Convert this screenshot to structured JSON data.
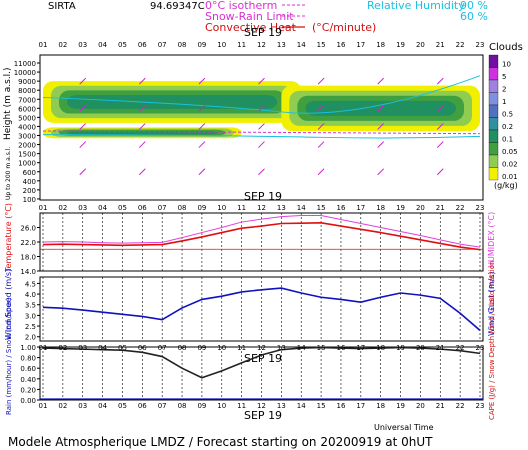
{
  "header": {
    "station": "SIRTA",
    "code": "94.69347C",
    "legend_left": [
      {
        "label": "0°C isotherm",
        "color": "#d930d0"
      },
      {
        "label": "Snow-Rain Limit",
        "color": "#d930d0"
      },
      {
        "label": "Convective Heat",
        "unit": "(°C/minute)",
        "color": "#d01010"
      }
    ],
    "legend_right": [
      {
        "label": "Relative Humidity",
        "value": "90 %",
        "color": "#19c0e0"
      },
      {
        "label": "",
        "value": "60 %",
        "color": "#19c0e0"
      }
    ]
  },
  "footer": "Modele Atmospherique LMDZ / Forecast starting on 20200919 at 0hUT",
  "colors": {
    "accent_magenta": "#d020d0",
    "temp_red": "#e01010",
    "humidex": "#e040e0",
    "wind": "#1010c0",
    "cyan": "#19c0e0"
  },
  "chart_data": [
    {
      "type": "heatmap",
      "title": "SEP 19",
      "ylabel": "Height (m a.s.l.)",
      "ylabel_note": "Up to 200 m a.s.l.",
      "x_ticks": [
        "01",
        "02",
        "03",
        "04",
        "05",
        "06",
        "07",
        "08",
        "09",
        "10",
        "11",
        "12",
        "13",
        "14",
        "15",
        "16",
        "17",
        "18",
        "19",
        "20",
        "21",
        "22",
        "23"
      ],
      "y_ticks": [
        "11000",
        "10000",
        "9000",
        "8000",
        "7000",
        "6000",
        "5000",
        "4000",
        "3000",
        "2000",
        "1500",
        "1000",
        "600",
        "400",
        "200",
        "100"
      ],
      "colorbar": {
        "title": "Clouds",
        "unit": "(g/kg)",
        "labels": [
          "10",
          "5",
          "2",
          "1",
          "0.5",
          "0.2",
          "0.1",
          "0.05",
          "0.02",
          "0.01"
        ],
        "colors": [
          "#7010a0",
          "#d030e0",
          "#a080e0",
          "#8090e0",
          "#5070c0",
          "#3090a0",
          "#209060",
          "#40a040",
          "#90cc50",
          "#f0f000"
        ]
      },
      "cloud_layers": [
        {
          "x_range": [
            1,
            14
          ],
          "base_m": 4400,
          "top_m": 9000,
          "peak": "0.2"
        },
        {
          "x_range": [
            13,
            23
          ],
          "base_m": 3500,
          "top_m": 8500,
          "peak": "0.2"
        },
        {
          "x_range": [
            1,
            11
          ],
          "base_m": 2700,
          "top_m": 3900,
          "peak": "0.1"
        }
      ],
      "rh_labels": [
        "90",
        "60"
      ]
    },
    {
      "type": "line",
      "title": "SEP 19",
      "ylabel": "Temperature (°C)",
      "ylabel_right": "HUMIDEX (°C)",
      "y_ticks": [
        "14.0",
        "18.0",
        "22.0",
        "26.0"
      ],
      "ylim": [
        14,
        30
      ],
      "x": [
        1,
        2,
        3,
        4,
        5,
        6,
        7,
        8,
        9,
        10,
        11,
        12,
        13,
        14,
        15,
        16,
        17,
        18,
        19,
        20,
        21,
        22,
        23
      ],
      "series": [
        {
          "name": "Temperature",
          "values": [
            21.3,
            21.4,
            21.3,
            21.2,
            21.1,
            21.2,
            21.3,
            22.3,
            23.4,
            24.6,
            25.8,
            26.4,
            27.1,
            27.2,
            27.3,
            26.4,
            25.5,
            24.6,
            23.6,
            22.6,
            21.6,
            20.6,
            19.9
          ]
        },
        {
          "name": "HUMIDEX",
          "values": [
            22.0,
            22.1,
            22.0,
            21.8,
            21.7,
            21.8,
            21.9,
            23.2,
            24.6,
            26.0,
            27.5,
            28.3,
            29.0,
            29.3,
            29.3,
            28.2,
            27.1,
            26.0,
            24.9,
            23.8,
            22.6,
            21.4,
            20.6
          ]
        }
      ],
      "reference_line": 20.0
    },
    {
      "type": "line",
      "ylabel": "Wind Speed (m/s)",
      "ylabel_right": "Wind Gust (m/s)",
      "y_ticks": [
        "2.0",
        "2.5",
        "3.0",
        "3.5",
        "4.0",
        "4.5"
      ],
      "ylim": [
        1.8,
        4.8
      ],
      "x": [
        1,
        2,
        3,
        4,
        5,
        6,
        7,
        8,
        9,
        10,
        11,
        12,
        13,
        14,
        15,
        16,
        17,
        18,
        19,
        20,
        21,
        22,
        23
      ],
      "series": [
        {
          "name": "Wind Speed",
          "values": [
            3.38,
            3.34,
            3.25,
            3.15,
            3.05,
            2.95,
            2.8,
            3.35,
            3.75,
            3.9,
            4.1,
            4.2,
            4.28,
            4.05,
            3.85,
            3.75,
            3.62,
            3.85,
            4.05,
            3.95,
            3.8,
            3.1,
            2.3
          ]
        }
      ]
    },
    {
      "type": "line",
      "title": "SEP 19",
      "ylabel": "Rain (mm/hour) / Snow (cm/hour)",
      "ylabel_right": "CAPE (J/g) / Snow Depth (cm) / Cloud Fraction",
      "y_ticks": [
        "0.00",
        "0.20",
        "0.40",
        "0.60",
        "0.80",
        "1.00"
      ],
      "ylim": [
        0,
        1
      ],
      "x_label": "Universal Time",
      "x": [
        1,
        2,
        3,
        4,
        5,
        6,
        7,
        8,
        9,
        10,
        11,
        12,
        13,
        14,
        15,
        16,
        17,
        18,
        19,
        20,
        21,
        22,
        23
      ],
      "series": [
        {
          "name": "Cloud Fraction",
          "values": [
            0.98,
            0.97,
            0.96,
            0.95,
            0.94,
            0.9,
            0.82,
            0.6,
            0.42,
            0.55,
            0.7,
            0.85,
            0.95,
            0.98,
            0.99,
            0.98,
            0.97,
            0.98,
            0.99,
            0.98,
            0.96,
            0.93,
            0.88
          ]
        }
      ]
    }
  ]
}
